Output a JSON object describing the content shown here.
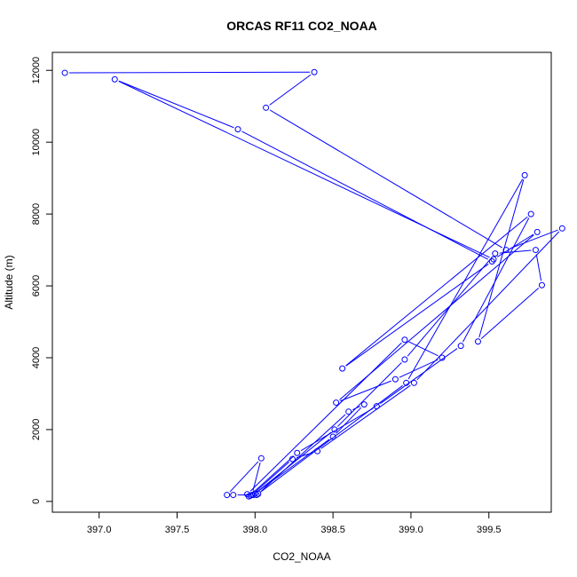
{
  "chart_data": {
    "type": "line",
    "title": "ORCAS RF11 CO2_NOAA",
    "xlabel": "CO2_NOAA",
    "ylabel": "Altitude (m)",
    "xlim": [
      396.7,
      399.9
    ],
    "ylim": [
      -300,
      12500
    ],
    "xticks": [
      397.0,
      397.5,
      398.0,
      398.5,
      399.0,
      399.5
    ],
    "xtick_labels": [
      "397.0",
      "397.5",
      "398.0",
      "398.5",
      "399.0",
      "399.5"
    ],
    "yticks": [
      0,
      2000,
      4000,
      6000,
      8000,
      10000,
      12000
    ],
    "ytick_labels": [
      "0",
      "2000",
      "4000",
      "6000",
      "8000",
      "10000",
      "12000"
    ],
    "grid": false,
    "legend": "none",
    "series_color": "#0000ff",
    "series": [
      {
        "x": [
          396.78,
          398.38,
          398.07,
          399.61,
          399.97,
          399.02,
          398.4,
          398.24,
          397.98,
          398.04,
          397.82,
          397.86,
          397.99,
          398.51,
          398.96,
          399.54,
          399.8,
          399.84,
          399.43,
          399.73,
          398.97,
          398.01,
          397.96,
          398.27,
          398.78,
          399.32,
          399.77,
          398.56,
          399.52,
          397.89,
          397.1,
          399.53,
          399.81,
          398.52,
          398.9,
          399.2,
          398.96,
          397.95,
          397.97,
          398.0,
          398.5,
          398.7,
          398.6,
          398.02
        ],
        "y": [
          11930,
          11950,
          10960,
          7000,
          7600,
          3300,
          1400,
          1180,
          180,
          1200,
          180,
          180,
          180,
          2000,
          3950,
          6900,
          7000,
          6020,
          4450,
          9080,
          3300,
          180,
          140,
          1350,
          2650,
          4330,
          8000,
          3700,
          6680,
          10360,
          11750,
          6740,
          7500,
          2750,
          3400,
          4000,
          4500,
          200,
          160,
          220,
          1800,
          2700,
          2500,
          210
        ]
      }
    ]
  }
}
